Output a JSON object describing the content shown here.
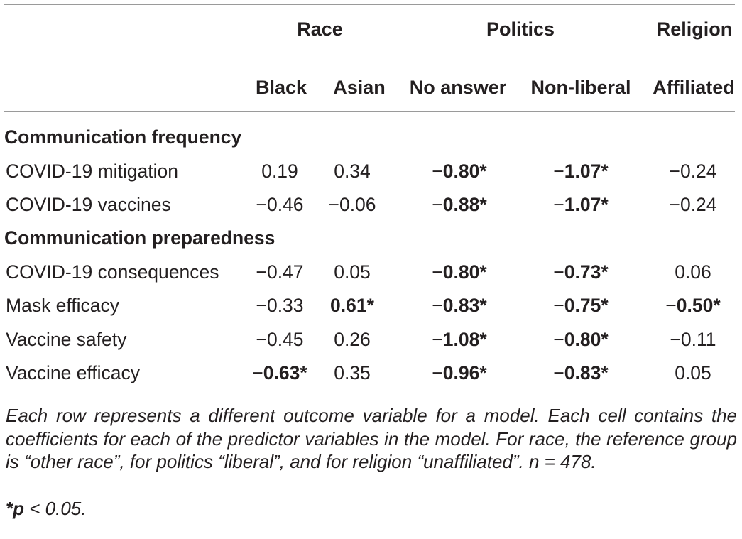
{
  "table": {
    "group_headers": {
      "race": "Race",
      "politics": "Politics",
      "religion": "Religion"
    },
    "column_headers": [
      "Black",
      "Asian",
      "No answer",
      "Non-liberal",
      "Affiliated"
    ],
    "sections": [
      {
        "title": "Communication frequency",
        "rows": [
          {
            "label": "COVID-19 mitigation",
            "cells": [
              {
                "sign": "",
                "value": "0.19",
                "sig": false
              },
              {
                "sign": "",
                "value": "0.34",
                "sig": false
              },
              {
                "sign": "−",
                "value": "0.80*",
                "sig": true
              },
              {
                "sign": "−",
                "value": "1.07*",
                "sig": true
              },
              {
                "sign": "−",
                "value": "0.24",
                "sig": false
              }
            ]
          },
          {
            "label": "COVID-19 vaccines",
            "cells": [
              {
                "sign": "−",
                "value": "0.46",
                "sig": false
              },
              {
                "sign": "−",
                "value": "0.06",
                "sig": false
              },
              {
                "sign": "−",
                "value": "0.88*",
                "sig": true
              },
              {
                "sign": "−",
                "value": "1.07*",
                "sig": true
              },
              {
                "sign": "−",
                "value": "0.24",
                "sig": false
              }
            ]
          }
        ]
      },
      {
        "title": "Communication preparedness",
        "rows": [
          {
            "label": "COVID-19 consequences",
            "cells": [
              {
                "sign": "−",
                "value": "0.47",
                "sig": false
              },
              {
                "sign": "",
                "value": "0.05",
                "sig": false
              },
              {
                "sign": "−",
                "value": "0.80*",
                "sig": true
              },
              {
                "sign": "−",
                "value": "0.73*",
                "sig": true
              },
              {
                "sign": "",
                "value": "0.06",
                "sig": false
              }
            ]
          },
          {
            "label": "Mask efficacy",
            "cells": [
              {
                "sign": "−",
                "value": "0.33",
                "sig": false
              },
              {
                "sign": "",
                "value": "0.61*",
                "sig": true
              },
              {
                "sign": "−",
                "value": "0.83*",
                "sig": true
              },
              {
                "sign": "−",
                "value": "0.75*",
                "sig": true
              },
              {
                "sign": "−",
                "value": "0.50*",
                "sig": true
              }
            ]
          },
          {
            "label": "Vaccine safety",
            "cells": [
              {
                "sign": "−",
                "value": "0.45",
                "sig": false
              },
              {
                "sign": "",
                "value": "0.26",
                "sig": false
              },
              {
                "sign": "−",
                "value": "1.08*",
                "sig": true
              },
              {
                "sign": "−",
                "value": "0.80*",
                "sig": true
              },
              {
                "sign": "−",
                "value": "0.11",
                "sig": false
              }
            ]
          },
          {
            "label": "Vaccine efficacy",
            "cells": [
              {
                "sign": "−",
                "value": "0.63*",
                "sig": true
              },
              {
                "sign": "",
                "value": "0.35",
                "sig": false
              },
              {
                "sign": "−",
                "value": "0.96*",
                "sig": true
              },
              {
                "sign": "−",
                "value": "0.83*",
                "sig": true
              },
              {
                "sign": "",
                "value": "0.05",
                "sig": false
              }
            ]
          }
        ]
      }
    ]
  },
  "footnote": {
    "text": "Each row represents a different outcome variable for a model. Each cell contains the coefficients for each of the predictor variables in the model. For race, the reference group is “other race”, for politics “liberal”, and for religion “unaffiliated”. n = 478.",
    "significance_prefix": "*p",
    "significance_rest": " < 0.05."
  }
}
